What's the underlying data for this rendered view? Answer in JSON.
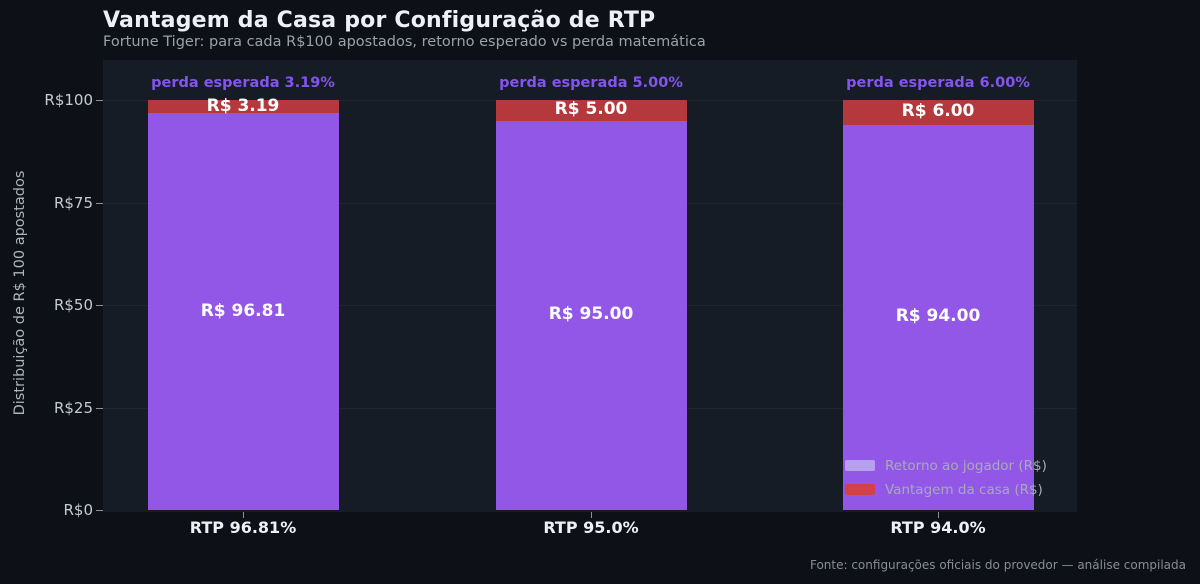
{
  "header": {
    "title": "Vantagem da Casa por Configuração de RTP",
    "subtitle": "Fortune Tiger: para cada R$100 apostados, retorno esperado vs perda matemática"
  },
  "chart_data": {
    "type": "bar",
    "stacked": true,
    "title": "Vantagem da Casa por Configuração de RTP",
    "subtitle": "Fortune Tiger: para cada R$100 apostados, retorno esperado vs perda matemática",
    "categories": [
      "RTP 96.81%",
      "RTP 95.0%",
      "RTP 94.0%"
    ],
    "series": [
      {
        "name": "Retorno ao jogador (R$)",
        "values": [
          96.81,
          95.0,
          94.0
        ],
        "color": "#9257e6",
        "label_texts": [
          "R$ 96.81",
          "R$ 95.00",
          "R$ 94.00"
        ]
      },
      {
        "name": "Vantagem da casa (R$)",
        "values": [
          3.19,
          5.0,
          6.0
        ],
        "color": "#b4383c",
        "label_texts": [
          "R$ 3.19",
          "R$ 5.00",
          "R$ 6.00"
        ]
      }
    ],
    "annotations": [
      "perda esperada 3.19%",
      "perda esperada 5.00%",
      "perda esperada 6.00%"
    ],
    "annotation_color": "#8455ec",
    "xlabel": "",
    "ylabel": "Distribuição de R$ 100 apostados",
    "ylim": [
      0,
      110
    ],
    "yticks": [
      {
        "value": 0,
        "label": "R$0"
      },
      {
        "value": 25,
        "label": "R$25"
      },
      {
        "value": 50,
        "label": "R$50"
      },
      {
        "value": 75,
        "label": "R$75"
      },
      {
        "value": 100,
        "label": "R$100"
      }
    ],
    "grid": true,
    "legend_position": "lower right",
    "legend": [
      {
        "label": "Retorno ao jogador (R$)",
        "swatch": "#b7a1ee"
      },
      {
        "label": "Vantagem da casa (R$)",
        "swatch": "#d2404a"
      }
    ]
  },
  "footer": {
    "source": "Fonte: configurações oficiais do provedor — análise compilada"
  }
}
